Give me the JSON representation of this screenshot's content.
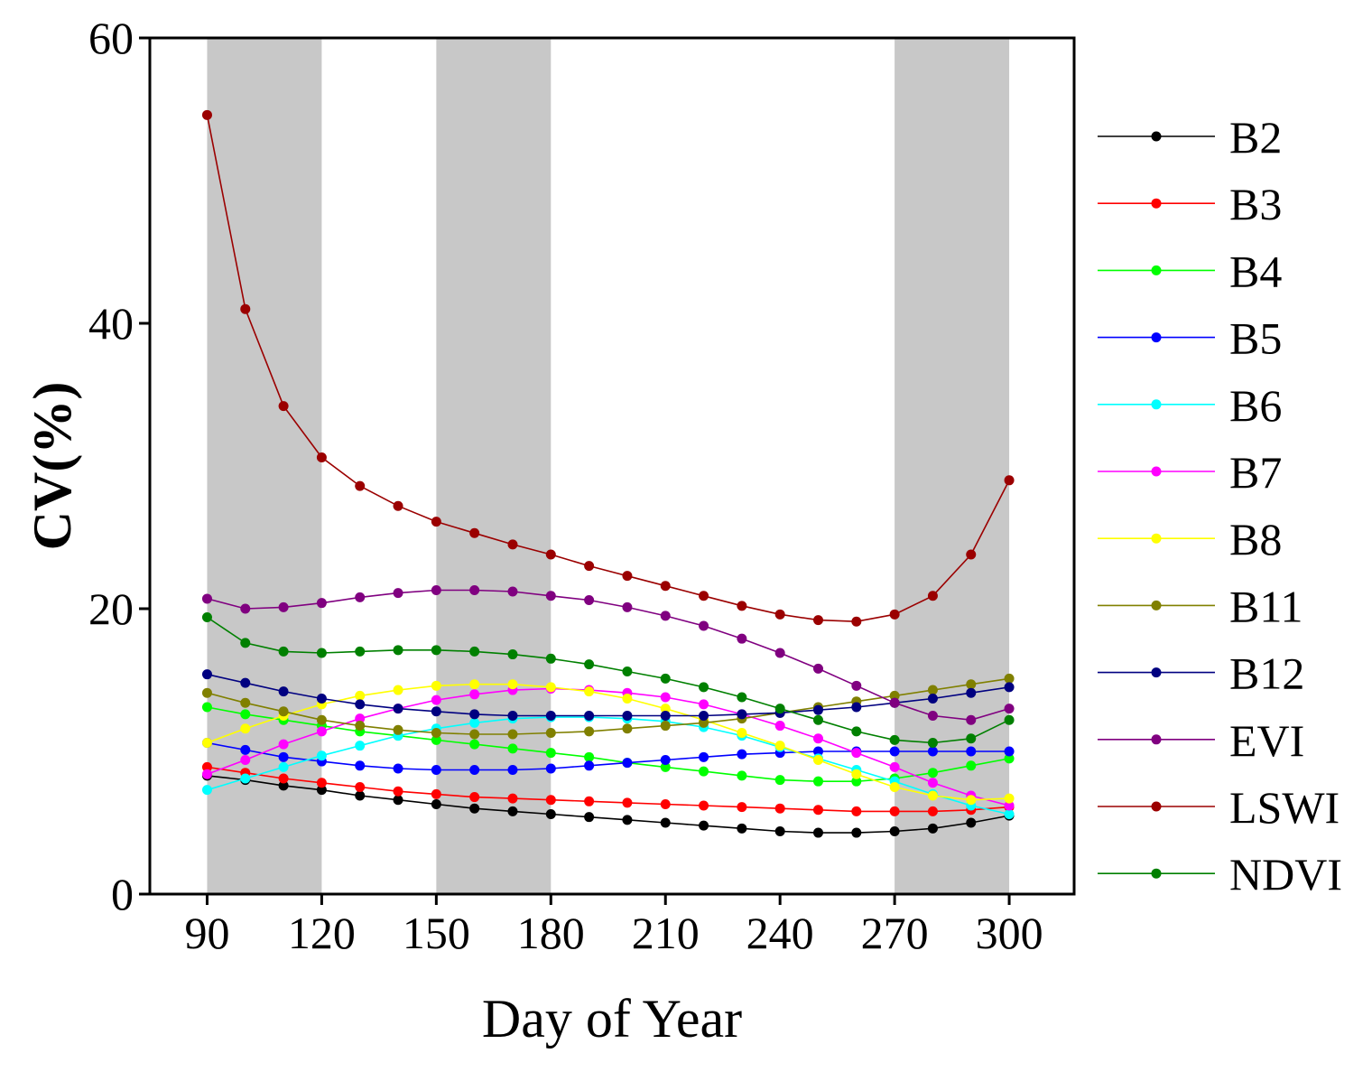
{
  "chart_data": {
    "type": "line",
    "title": "",
    "xlabel": "Day of Year",
    "ylabel": "CV(%)",
    "xlim": [
      75,
      317
    ],
    "ylim": [
      0,
      60
    ],
    "xticks": [
      90,
      120,
      150,
      180,
      210,
      240,
      270,
      300
    ],
    "yticks": [
      0,
      20,
      40,
      60
    ],
    "grid": false,
    "legend_position": "right",
    "shaded_x_ranges": [
      [
        90,
        120
      ],
      [
        150,
        180
      ],
      [
        270,
        300
      ]
    ],
    "shade_color": "#c8c8c8",
    "x": [
      90,
      100,
      110,
      120,
      130,
      140,
      150,
      160,
      170,
      180,
      190,
      200,
      210,
      220,
      230,
      240,
      250,
      260,
      270,
      280,
      290,
      300
    ],
    "series": [
      {
        "name": "B2",
        "color": "#000000",
        "values": [
          8.3,
          8.0,
          7.6,
          7.3,
          6.9,
          6.6,
          6.3,
          6.0,
          5.8,
          5.6,
          5.4,
          5.2,
          5.0,
          4.8,
          4.6,
          4.4,
          4.3,
          4.3,
          4.4,
          4.6,
          5.0,
          5.5
        ]
      },
      {
        "name": "B3",
        "color": "#ff0000",
        "values": [
          8.9,
          8.5,
          8.1,
          7.8,
          7.5,
          7.2,
          7.0,
          6.8,
          6.7,
          6.6,
          6.5,
          6.4,
          6.3,
          6.2,
          6.1,
          6.0,
          5.9,
          5.8,
          5.8,
          5.8,
          5.9,
          6.1
        ]
      },
      {
        "name": "B4",
        "color": "#00ff00",
        "values": [
          13.1,
          12.6,
          12.2,
          11.8,
          11.4,
          11.1,
          10.8,
          10.5,
          10.2,
          9.9,
          9.6,
          9.2,
          8.9,
          8.6,
          8.3,
          8.0,
          7.9,
          7.9,
          8.1,
          8.5,
          9.0,
          9.5
        ]
      },
      {
        "name": "B5",
        "color": "#0000ff",
        "values": [
          10.6,
          10.1,
          9.6,
          9.3,
          9.0,
          8.8,
          8.7,
          8.7,
          8.7,
          8.8,
          9.0,
          9.2,
          9.4,
          9.6,
          9.8,
          9.9,
          10.0,
          10.0,
          10.0,
          10.0,
          10.0,
          10.0
        ]
      },
      {
        "name": "B6",
        "color": "#00ffff",
        "values": [
          7.3,
          8.1,
          8.9,
          9.7,
          10.4,
          11.1,
          11.6,
          12.0,
          12.3,
          12.4,
          12.4,
          12.3,
          12.1,
          11.7,
          11.1,
          10.3,
          9.5,
          8.7,
          7.9,
          7.0,
          6.2,
          5.6
        ]
      },
      {
        "name": "B7",
        "color": "#ff00ff",
        "values": [
          8.4,
          9.4,
          10.5,
          11.4,
          12.3,
          13.0,
          13.6,
          14.0,
          14.3,
          14.4,
          14.3,
          14.1,
          13.8,
          13.3,
          12.6,
          11.8,
          10.9,
          9.9,
          8.9,
          7.8,
          6.9,
          6.2
        ]
      },
      {
        "name": "B8",
        "color": "#ffff00",
        "values": [
          10.6,
          11.6,
          12.5,
          13.3,
          13.9,
          14.3,
          14.6,
          14.7,
          14.7,
          14.5,
          14.2,
          13.7,
          13.0,
          12.2,
          11.3,
          10.4,
          9.4,
          8.4,
          7.5,
          6.9,
          6.6,
          6.7
        ]
      },
      {
        "name": "B11",
        "color": "#808000",
        "values": [
          14.1,
          13.4,
          12.8,
          12.2,
          11.8,
          11.5,
          11.3,
          11.2,
          11.2,
          11.3,
          11.4,
          11.6,
          11.8,
          12.0,
          12.3,
          12.7,
          13.1,
          13.5,
          13.9,
          14.3,
          14.7,
          15.1
        ]
      },
      {
        "name": "B12",
        "color": "#000080",
        "values": [
          15.4,
          14.8,
          14.2,
          13.7,
          13.3,
          13.0,
          12.8,
          12.6,
          12.5,
          12.5,
          12.5,
          12.5,
          12.5,
          12.5,
          12.6,
          12.7,
          12.9,
          13.1,
          13.4,
          13.7,
          14.1,
          14.5
        ]
      },
      {
        "name": "EVI",
        "color": "#800080",
        "values": [
          20.7,
          20.0,
          20.1,
          20.4,
          20.8,
          21.1,
          21.3,
          21.3,
          21.2,
          20.9,
          20.6,
          20.1,
          19.5,
          18.8,
          17.9,
          16.9,
          15.8,
          14.6,
          13.4,
          12.5,
          12.2,
          13.0
        ]
      },
      {
        "name": "LSWI",
        "color": "#9b0000",
        "values": [
          54.6,
          41.0,
          34.2,
          30.6,
          28.6,
          27.2,
          26.1,
          25.3,
          24.5,
          23.8,
          23.0,
          22.3,
          21.6,
          20.9,
          20.2,
          19.6,
          19.2,
          19.1,
          19.6,
          20.9,
          23.8,
          29.0
        ]
      },
      {
        "name": "NDVI",
        "color": "#008000",
        "values": [
          19.4,
          17.6,
          17.0,
          16.9,
          17.0,
          17.1,
          17.1,
          17.0,
          16.8,
          16.5,
          16.1,
          15.6,
          15.1,
          14.5,
          13.8,
          13.0,
          12.2,
          11.4,
          10.8,
          10.6,
          10.9,
          12.2
        ]
      }
    ]
  }
}
